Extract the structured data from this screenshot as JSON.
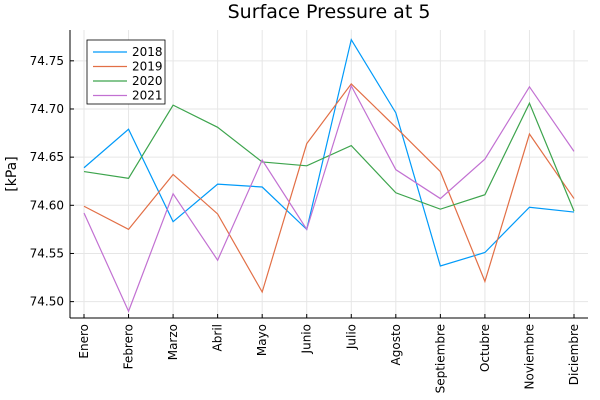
{
  "chart_data": {
    "type": "line",
    "title": "Surface Pressure at 5",
    "y_label": "[kPa]",
    "categories": [
      "Enero",
      "Febrero",
      "Marzo",
      "Abril",
      "Mayo",
      "Junio",
      "Julio",
      "Agosto",
      "Septiembre",
      "Octubre",
      "Noviembre",
      "Diciembre"
    ],
    "series": [
      {
        "name": "2018",
        "color": "#009af9",
        "values": [
          74.639,
          74.679,
          74.583,
          74.622,
          74.619,
          74.575,
          74.772,
          74.696,
          74.537,
          74.551,
          74.598,
          74.593
        ]
      },
      {
        "name": "2019",
        "color": "#e26f46",
        "values": [
          74.599,
          74.575,
          74.632,
          74.591,
          74.51,
          74.664,
          74.726,
          74.681,
          74.635,
          74.521,
          74.674,
          74.607
        ]
      },
      {
        "name": "2020",
        "color": "#3da44d",
        "values": [
          74.635,
          74.628,
          74.704,
          74.681,
          74.645,
          74.641,
          74.662,
          74.613,
          74.596,
          74.611,
          74.706,
          74.594
        ]
      },
      {
        "name": "2021",
        "color": "#c271d2",
        "values": [
          74.592,
          74.49,
          74.612,
          74.543,
          74.647,
          74.575,
          74.724,
          74.637,
          74.607,
          74.648,
          74.723,
          74.656
        ]
      }
    ],
    "ylim": [
      74.483,
      74.782
    ],
    "yticks": [
      {
        "value": 74.5,
        "label": "74.50"
      },
      74.55,
      {
        "value": 74.6,
        "label": "74.60"
      },
      74.65,
      {
        "value": 74.7,
        "label": "74.70"
      },
      74.75
    ],
    "grid": true,
    "legend_position": "top-left"
  }
}
